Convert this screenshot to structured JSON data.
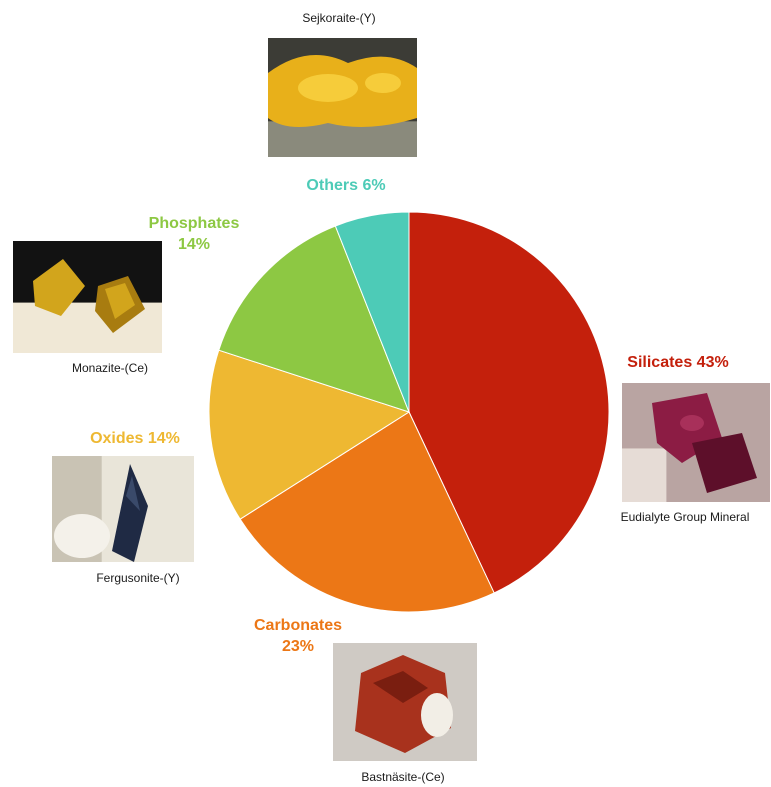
{
  "chart_data": {
    "type": "pie",
    "title": "",
    "categories": [
      "Silicates",
      "Carbonates",
      "Oxides",
      "Phosphates",
      "Others"
    ],
    "values": [
      43,
      23,
      14,
      14,
      6
    ],
    "colors": [
      "#c4200c",
      "#ec7716",
      "#eeb832",
      "#8dc843",
      "#4dcbb7"
    ],
    "slice_labels": [
      {
        "lines": [
          "Silicates 43%"
        ]
      },
      {
        "lines": [
          "Carbonates",
          "23%"
        ]
      },
      {
        "lines": [
          "Oxides 14%"
        ]
      },
      {
        "lines": [
          "Phosphates",
          "14%"
        ]
      },
      {
        "lines": [
          "Others 6%"
        ]
      }
    ],
    "start": "12 o'clock, clockwise",
    "legend": "none"
  },
  "mineral_photos": [
    {
      "caption": "Eudialyte Group Mineral",
      "group": "Silicates",
      "icon": "eudialyte-photo",
      "tones": [
        "#b9a4a2",
        "#8c1c44",
        "#5d0f2a",
        "#e6dcd6"
      ]
    },
    {
      "caption": "Bastnäsite-(Ce)",
      "group": "Carbonates",
      "icon": "bastnasite-photo",
      "tones": [
        "#cfcac4",
        "#a8321d",
        "#7a1e10",
        "#f2eee6"
      ]
    },
    {
      "caption": "Fergusonite-(Y)",
      "group": "Oxides",
      "icon": "fergusonite-photo",
      "tones": [
        "#e9e5d9",
        "#1f2a44",
        "#3a4a6a",
        "#c9c3b4"
      ]
    },
    {
      "caption": "Monazite-(Ce)",
      "group": "Phosphates",
      "icon": "monazite-photo",
      "tones": [
        "#121212",
        "#d2a51c",
        "#f0e8d6",
        "#a87c10"
      ]
    },
    {
      "caption": "Sejkoraite-(Y)",
      "group": "Others",
      "icon": "sejkoraite-photo",
      "tones": [
        "#3c3c36",
        "#e8b01a",
        "#f6cc3a",
        "#8a8a7c"
      ]
    }
  ]
}
